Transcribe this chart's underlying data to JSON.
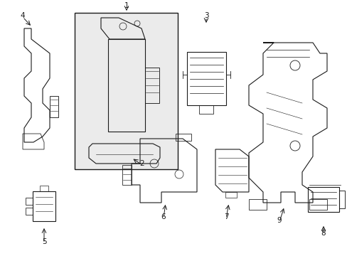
{
  "background_color": "#ffffff",
  "line_color": "#1a1a1a",
  "box_fill": "#ebebeb",
  "figsize": [
    4.89,
    3.6
  ],
  "dpi": 100
}
